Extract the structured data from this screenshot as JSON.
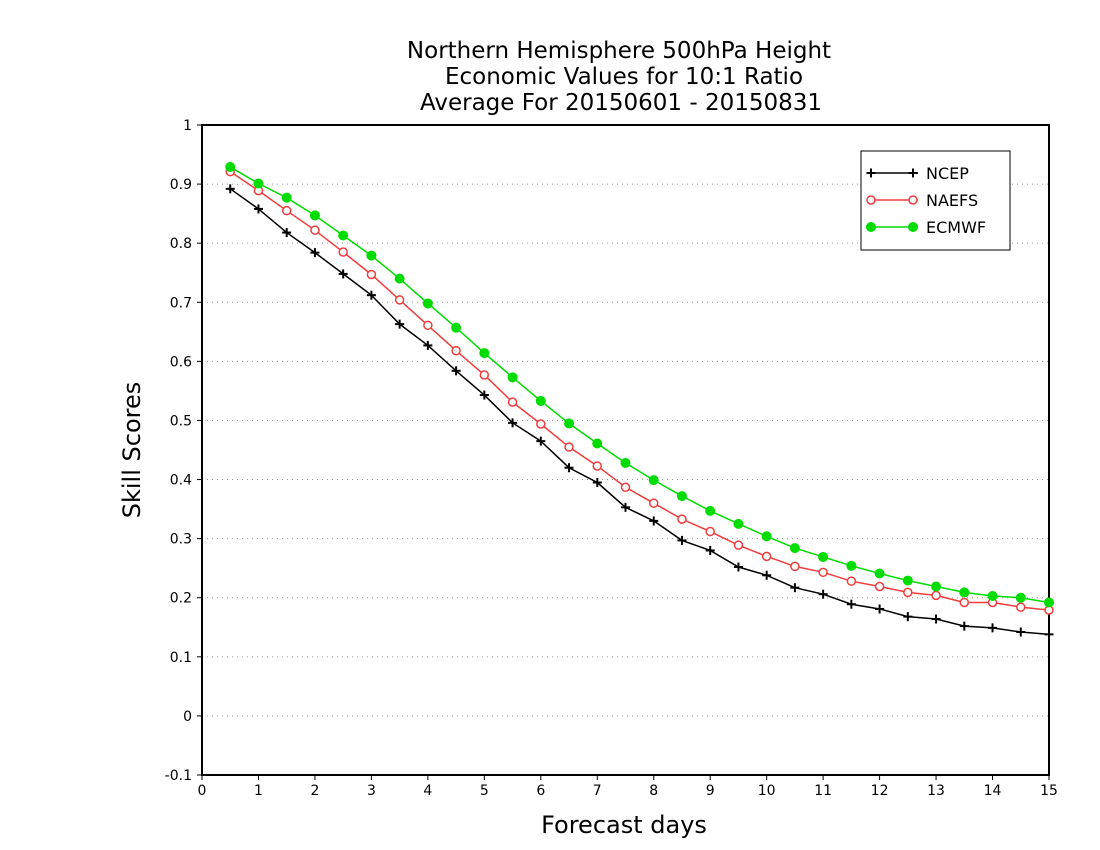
{
  "chart_data": {
    "type": "line",
    "title_lines": [
      "Northern Hemisphere 500hPa Height",
      "Economic Values for 10:1 Ratio",
      "Average For 20150601 - 20150831"
    ],
    "xlabel": "Forecast days",
    "ylabel": "Skill Scores",
    "xlim": [
      0,
      15
    ],
    "ylim": [
      -0.1,
      1
    ],
    "xticks": [
      "0",
      "1",
      "2",
      "3",
      "4",
      "5",
      "6",
      "7",
      "8",
      "9",
      "10",
      "11",
      "12",
      "13",
      "14",
      "15"
    ],
    "yticks": [
      "-0.1",
      "0",
      "0.1",
      "0.2",
      "0.3",
      "0.4",
      "0.5",
      "0.6",
      "0.7",
      "0.8",
      "0.9",
      "1"
    ],
    "grid": "horizontal dotted",
    "legend_position": "top-right",
    "x": [
      0.5,
      1,
      1.5,
      2,
      2.5,
      3,
      3.5,
      4,
      4.5,
      5,
      5.5,
      6,
      6.5,
      7,
      7.5,
      8,
      8.5,
      9,
      9.5,
      10,
      10.5,
      11,
      11.5,
      12,
      12.5,
      13,
      13.5,
      14,
      14.5,
      15
    ],
    "series": [
      {
        "name": "NCEP",
        "color": "#000000",
        "marker": "plus",
        "values": [
          0.892,
          0.858,
          0.818,
          0.784,
          0.748,
          0.712,
          0.663,
          0.627,
          0.584,
          0.543,
          0.496,
          0.465,
          0.42,
          0.395,
          0.353,
          0.33,
          0.297,
          0.28,
          0.252,
          0.238,
          0.217,
          0.206,
          0.189,
          0.181,
          0.168,
          0.164,
          0.152,
          0.149,
          0.142,
          0.138
        ]
      },
      {
        "name": "NAEFS",
        "color": "#f03c3c",
        "marker": "open-circle",
        "values": [
          0.921,
          0.889,
          0.855,
          0.822,
          0.785,
          0.747,
          0.704,
          0.661,
          0.618,
          0.577,
          0.531,
          0.494,
          0.455,
          0.423,
          0.387,
          0.36,
          0.333,
          0.312,
          0.289,
          0.27,
          0.253,
          0.243,
          0.228,
          0.219,
          0.209,
          0.204,
          0.192,
          0.192,
          0.184,
          0.179
        ]
      },
      {
        "name": "ECMWF",
        "color": "#00dc00",
        "marker": "filled-circle",
        "values": [
          0.929,
          0.901,
          0.877,
          0.847,
          0.813,
          0.779,
          0.74,
          0.698,
          0.657,
          0.614,
          0.573,
          0.533,
          0.495,
          0.461,
          0.428,
          0.399,
          0.372,
          0.347,
          0.325,
          0.304,
          0.284,
          0.269,
          0.254,
          0.241,
          0.229,
          0.219,
          0.209,
          0.203,
          0.2,
          0.192
        ]
      }
    ]
  }
}
